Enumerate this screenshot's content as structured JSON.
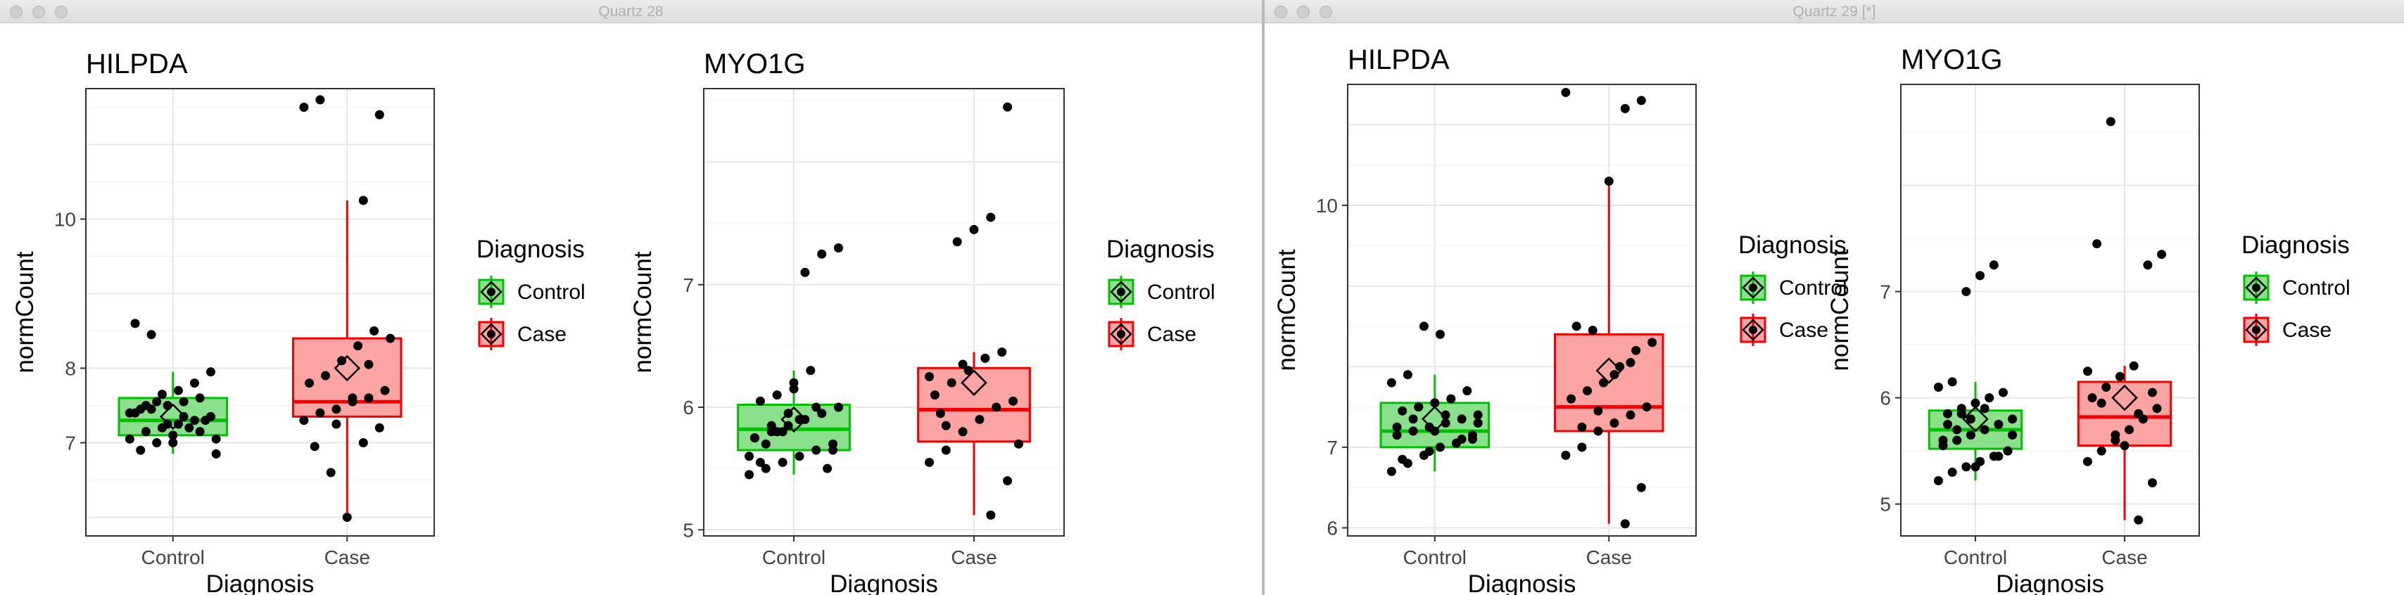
{
  "windows": [
    {
      "title": "Quartz 28",
      "chart_data": [
        {
          "type": "boxplot",
          "title": "HILPDA",
          "xlabel": "Diagnosis",
          "ylabel": "normCount",
          "categories": [
            "Control",
            "Case"
          ],
          "yticks": [
            7,
            8,
            10
          ],
          "ylim": [
            5.75,
            11.75
          ],
          "grid": true,
          "boxes": [
            {
              "category": "Control",
              "q1": 7.1,
              "median": 7.3,
              "q3": 7.6,
              "whisker_low": 6.85,
              "whisker_high": 7.95,
              "mean": 7.35,
              "color": "#00c000"
            },
            {
              "category": "Case",
              "q1": 7.35,
              "median": 7.55,
              "q3": 8.4,
              "whisker_low": 6.0,
              "whisker_high": 10.25,
              "mean": 8.0,
              "color": "#f00000"
            }
          ],
          "points": {
            "Control": [
              7.05,
              7.15,
              7.2,
              7.25,
              7.3,
              7.35,
              7.4,
              7.45,
              7.5,
              7.55,
              7.6,
              6.85,
              6.9,
              7.0,
              7.1,
              7.2,
              7.3,
              7.4,
              7.5,
              7.65,
              7.7,
              7.8,
              7.95,
              8.6,
              8.45,
              7.25,
              7.35,
              7.15,
              7.05,
              7.45,
              7.55,
              7.0
            ],
            "Case": [
              7.0,
              7.2,
              7.3,
              7.4,
              7.45,
              7.55,
              7.6,
              7.7,
              7.8,
              7.9,
              8.1,
              8.3,
              8.5,
              8.4,
              6.95,
              6.6,
              6.0,
              10.25,
              11.4,
              11.5,
              11.6,
              7.25,
              7.6,
              8.05
            ]
          },
          "legend": {
            "title": "Diagnosis",
            "items": [
              "Control",
              "Case"
            ],
            "position": "right"
          }
        },
        {
          "type": "boxplot",
          "title": "MYO1G",
          "xlabel": "Diagnosis",
          "ylabel": "normCount",
          "categories": [
            "Control",
            "Case"
          ],
          "yticks": [
            5,
            6,
            7
          ],
          "ylim": [
            4.95,
            8.6
          ],
          "grid": true,
          "boxes": [
            {
              "category": "Control",
              "q1": 5.65,
              "median": 5.82,
              "q3": 6.02,
              "whisker_low": 5.45,
              "whisker_high": 6.3,
              "mean": 5.9,
              "color": "#00c000"
            },
            {
              "category": "Case",
              "q1": 5.72,
              "median": 5.98,
              "q3": 6.32,
              "whisker_low": 5.12,
              "whisker_high": 6.45,
              "mean": 6.2,
              "color": "#f00000"
            }
          ],
          "points": {
            "Control": [
              5.45,
              5.5,
              5.55,
              5.6,
              5.65,
              5.7,
              5.75,
              5.8,
              5.85,
              5.9,
              5.95,
              6.0,
              6.05,
              6.1,
              6.2,
              6.3,
              5.5,
              5.6,
              5.7,
              5.8,
              5.9,
              6.0,
              5.65,
              5.75,
              5.85,
              5.95,
              7.1,
              7.25,
              7.3,
              5.55,
              5.8,
              6.15
            ],
            "Case": [
              5.12,
              5.4,
              5.55,
              5.65,
              5.8,
              5.9,
              6.0,
              6.05,
              6.1,
              6.2,
              6.3,
              6.4,
              6.45,
              5.7,
              5.95,
              7.35,
              7.45,
              7.55,
              8.45,
              6.25,
              5.85,
              6.35
            ]
          },
          "legend": {
            "title": "Diagnosis",
            "items": [
              "Control",
              "Case"
            ],
            "position": "right"
          }
        }
      ]
    },
    {
      "title": "Quartz 29 [*]",
      "chart_data": [
        {
          "type": "boxplot",
          "title": "HILPDA",
          "xlabel": "Diagnosis",
          "ylabel": "normCount",
          "categories": [
            "Control",
            "Case"
          ],
          "yticks": [
            6,
            7,
            10
          ],
          "ylim": [
            5.9,
            11.5
          ],
          "grid": true,
          "boxes": [
            {
              "category": "Control",
              "q1": 7.0,
              "median": 7.2,
              "q3": 7.55,
              "whisker_low": 6.7,
              "whisker_high": 7.9,
              "mean": 7.35,
              "color": "#00c000"
            },
            {
              "category": "Case",
              "q1": 7.2,
              "median": 7.5,
              "q3": 8.4,
              "whisker_low": 6.05,
              "whisker_high": 10.3,
              "mean": 7.95,
              "color": "#f00000"
            }
          ],
          "points": {
            "Control": [
              6.7,
              6.8,
              6.9,
              7.0,
              7.05,
              7.1,
              7.15,
              7.2,
              7.25,
              7.3,
              7.35,
              7.4,
              7.45,
              7.5,
              7.55,
              7.6,
              7.7,
              7.8,
              7.9,
              8.5,
              8.4,
              7.05,
              7.15,
              7.25,
              7.35,
              6.95,
              7.4,
              7.1,
              7.3,
              6.85,
              7.5,
              7.2
            ],
            "Case": [
              6.05,
              6.5,
              6.9,
              7.0,
              7.2,
              7.3,
              7.4,
              7.5,
              7.6,
              7.7,
              7.8,
              8.0,
              8.2,
              8.3,
              8.5,
              8.45,
              10.3,
              11.2,
              11.3,
              11.4,
              7.25,
              7.45,
              7.9,
              8.05
            ]
          },
          "legend": {
            "title": "Diagnosis",
            "items": [
              "Control",
              "Case"
            ],
            "position": "right"
          }
        },
        {
          "type": "boxplot",
          "title": "MYO1G",
          "xlabel": "Diagnosis",
          "ylabel": "normCount",
          "categories": [
            "Control",
            "Case"
          ],
          "yticks": [
            5,
            6,
            7
          ],
          "ylim": [
            4.7,
            8.95
          ],
          "grid": true,
          "boxes": [
            {
              "category": "Control",
              "q1": 5.52,
              "median": 5.7,
              "q3": 5.88,
              "whisker_low": 5.22,
              "whisker_high": 6.15,
              "mean": 5.8,
              "color": "#00c000"
            },
            {
              "category": "Case",
              "q1": 5.55,
              "median": 5.82,
              "q3": 6.15,
              "whisker_low": 4.85,
              "whisker_high": 6.3,
              "mean": 6.0,
              "color": "#f00000"
            }
          ],
          "points": {
            "Control": [
              5.22,
              5.3,
              5.35,
              5.4,
              5.45,
              5.5,
              5.55,
              5.6,
              5.65,
              5.7,
              5.75,
              5.8,
              5.85,
              5.9,
              5.95,
              6.0,
              6.05,
              6.1,
              6.15,
              7.0,
              7.15,
              7.25,
              5.5,
              5.6,
              5.7,
              5.8,
              5.9,
              5.45,
              5.65,
              5.75,
              5.85,
              5.35
            ],
            "Case": [
              4.85,
              5.2,
              5.4,
              5.5,
              5.6,
              5.7,
              5.8,
              5.9,
              6.0,
              6.1,
              6.2,
              6.3,
              7.25,
              7.35,
              7.45,
              8.6,
              5.55,
              5.85,
              6.05,
              6.25,
              5.95,
              5.65
            ]
          },
          "legend": {
            "title": "Diagnosis",
            "items": [
              "Control",
              "Case"
            ],
            "position": "right"
          }
        }
      ]
    }
  ]
}
